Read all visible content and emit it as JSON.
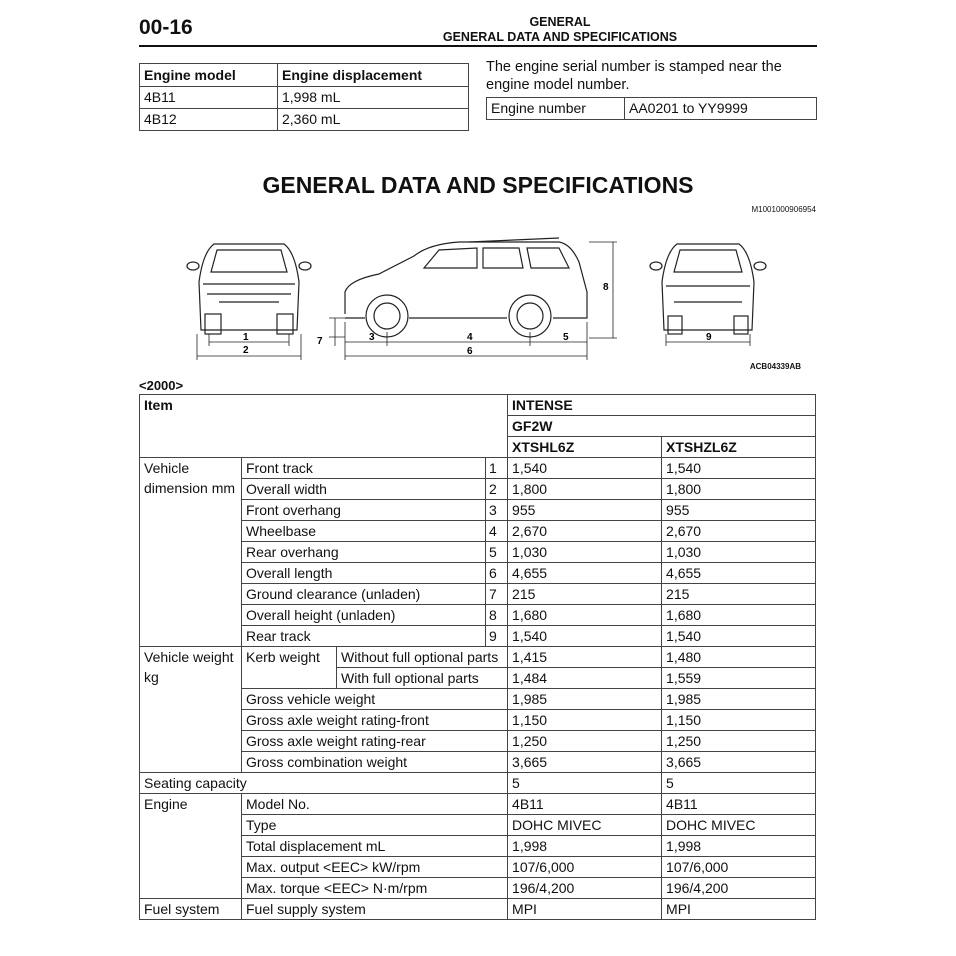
{
  "header": {
    "page_number": "00-16",
    "section": "GENERAL",
    "subsection": "GENERAL DATA AND SPECIFICATIONS"
  },
  "engine_table": {
    "headers": [
      "Engine model",
      "Engine displacement"
    ],
    "rows": [
      [
        "4B11",
        "1,998 mL"
      ],
      [
        "4B12",
        "2,360 mL"
      ]
    ]
  },
  "serial": {
    "note": "The engine serial number is stamped near the engine model number.",
    "label": "Engine number",
    "value": "AA0201 to YY9999"
  },
  "title": "GENERAL DATA AND SPECIFICATIONS",
  "reference_id": "M1001000906954",
  "diagram": {
    "figure_id": "ACB04339AB",
    "labels": [
      "1",
      "2",
      "3",
      "4",
      "5",
      "6",
      "7",
      "8",
      "9"
    ]
  },
  "year": "<2000>",
  "spec_table": {
    "item_header": "Item",
    "grade": "INTENSE",
    "model_code": "GF2W",
    "variants": [
      "XTSHL6Z",
      "XTSHZL6Z"
    ],
    "groups": [
      {
        "label": "Vehicle dimension mm",
        "rows": [
          {
            "label": "Front track",
            "num": "1",
            "values": [
              "1,540",
              "1,540"
            ]
          },
          {
            "label": "Overall width",
            "num": "2",
            "values": [
              "1,800",
              "1,800"
            ]
          },
          {
            "label": "Front overhang",
            "num": "3",
            "values": [
              "955",
              "955"
            ]
          },
          {
            "label": "Wheelbase",
            "num": "4",
            "values": [
              "2,670",
              "2,670"
            ]
          },
          {
            "label": "Rear overhang",
            "num": "5",
            "values": [
              "1,030",
              "1,030"
            ]
          },
          {
            "label": "Overall length",
            "num": "6",
            "values": [
              "4,655",
              "4,655"
            ]
          },
          {
            "label": "Ground clearance (unladen)",
            "num": "7",
            "values": [
              "215",
              "215"
            ]
          },
          {
            "label": "Overall height (unladen)",
            "num": "8",
            "values": [
              "1,680",
              "1,680"
            ]
          },
          {
            "label": "Rear track",
            "num": "9",
            "values": [
              "1,540",
              "1,540"
            ]
          }
        ]
      },
      {
        "label": "Vehicle weight kg",
        "rows": [
          {
            "sub": "Kerb weight",
            "label": "Without full optional parts",
            "values": [
              "1,415",
              "1,480"
            ]
          },
          {
            "sub": "Kerb weight",
            "label": "With full optional parts",
            "values": [
              "1,484",
              "1,559"
            ]
          },
          {
            "label": "Gross vehicle weight",
            "values": [
              "1,985",
              "1,985"
            ]
          },
          {
            "label": "Gross axle weight rating-front",
            "values": [
              "1,150",
              "1,150"
            ]
          },
          {
            "label": "Gross axle weight rating-rear",
            "values": [
              "1,250",
              "1,250"
            ]
          },
          {
            "label": "Gross combination weight",
            "values": [
              "3,665",
              "3,665"
            ]
          }
        ]
      },
      {
        "label": "Seating capacity",
        "rows": [
          {
            "label": "",
            "full": true,
            "values": [
              "5",
              "5"
            ]
          }
        ]
      },
      {
        "label": "Engine",
        "rows": [
          {
            "label": "Model No.",
            "values": [
              "4B11",
              "4B11"
            ]
          },
          {
            "label": "Type",
            "values": [
              "DOHC MIVEC",
              "DOHC MIVEC"
            ]
          },
          {
            "label": "Total displacement mL",
            "values": [
              "1,998",
              "1,998"
            ]
          },
          {
            "label": "Max. output <EEC> kW/rpm",
            "values": [
              "107/6,000",
              "107/6,000"
            ]
          },
          {
            "label": "Max. torque <EEC> N·m/rpm",
            "values": [
              "196/4,200",
              "196/4,200"
            ]
          }
        ]
      },
      {
        "label": "Fuel system",
        "rows": [
          {
            "label": "Fuel supply system",
            "values": [
              "MPI",
              "MPI"
            ]
          }
        ]
      }
    ]
  }
}
